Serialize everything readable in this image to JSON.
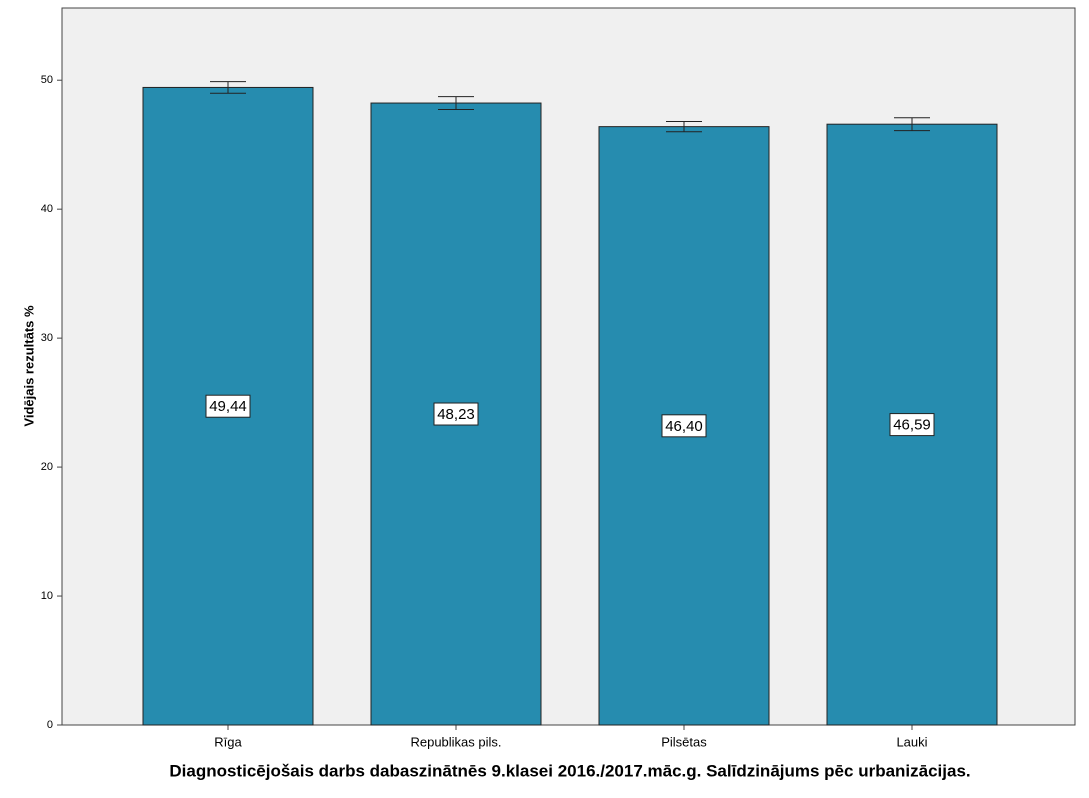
{
  "chart_data": {
    "type": "bar",
    "x_label": "Diagnosticējošais darbs dabaszinātnēs 9.klasei 2016./2017.māc.g. Salīdzinājums pēc urbanizācijas.",
    "y_label": "Vidējais rezultāts %",
    "categories": [
      "Rīga",
      "Republikas pils.",
      "Pilsētas",
      "Lauki"
    ],
    "values": [
      49.44,
      48.23,
      46.4,
      46.59
    ],
    "value_labels": [
      "49,44",
      "48,23",
      "46,40",
      "46,59"
    ],
    "errors": [
      0.45,
      0.5,
      0.4,
      0.5
    ],
    "color": "#268caf",
    "ylim": [
      0,
      55.6
    ],
    "yticks": [
      0,
      10,
      20,
      30,
      40,
      50
    ]
  }
}
